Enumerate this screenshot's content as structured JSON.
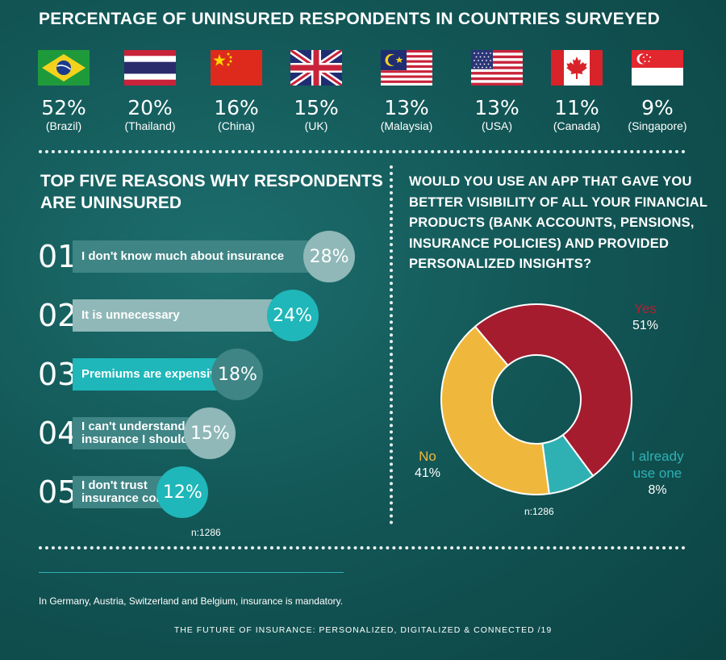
{
  "header": {
    "title": "PERCENTAGE OF UNINSURED RESPONDENTS IN COUNTRIES SURVEYED"
  },
  "countries": [
    {
      "pct": "52%",
      "name": "(Brazil)",
      "flag": "brazil-flag-icon"
    },
    {
      "pct": "20%",
      "name": "(Thailand)",
      "flag": "thailand-flag-icon"
    },
    {
      "pct": "16%",
      "name": "(China)",
      "flag": "china-flag-icon"
    },
    {
      "pct": "15%",
      "name": "(UK)",
      "flag": "uk-flag-icon"
    },
    {
      "pct": "13%",
      "name": "(Malaysia)",
      "flag": "malaysia-flag-icon"
    },
    {
      "pct": "13%",
      "name": "(USA)",
      "flag": "usa-flag-icon"
    },
    {
      "pct": "11%",
      "name": "(Canada)",
      "flag": "canada-flag-icon"
    },
    {
      "pct": "9%",
      "name": "(Singapore)",
      "flag": "singapore-flag-icon"
    }
  ],
  "reasons": {
    "title_line1": "TOP FIVE REASONS WHY RESPONDENTS",
    "title_line2": "ARE UNINSURED",
    "n": "n:1286"
  },
  "app_question": {
    "lines": [
      "WOULD YOU USE AN APP THAT GAVE YOU",
      "BETTER VISIBILITY OF ALL YOUR FINANCIAL",
      "PRODUCTS (BANK ACCOUNTS, PENSIONS,",
      "INSURANCE POLICIES) AND PROVIDED",
      "PERSONALIZED INSIGHTS?"
    ],
    "n": "n:1286"
  },
  "footnote": "In Germany, Austria, Switzerland and Belgium, insurance is mandatory.",
  "footer": "THE FUTURE OF INSURANCE: PERSONALIZED, DIGITALIZED & CONNECTED /19",
  "colors": {
    "bar_1": "#3f8585",
    "bar_2": "#90b8b8",
    "bar_3": "#1fb7b9",
    "circle_1": "#90b8b8",
    "circle_2": "#1fb7b9",
    "circle_3": "#3f8585",
    "yes": "#a51c2f",
    "no": "#efb83d",
    "already": "#2fb1b4"
  },
  "chart_data": [
    {
      "type": "bar",
      "title": "TOP FIVE REASONS WHY RESPONDENTS ARE UNINSURED",
      "categories": [
        "I don't know much about insurance",
        "It is unnecessary",
        "Premiums are expensive",
        "I can't understand which insurance I should buy",
        "I don't trust insurance companies"
      ],
      "ranks": [
        "01",
        "02",
        "03",
        "04",
        "05"
      ],
      "label_lines": [
        [
          "I don't know much about insurance"
        ],
        [
          "It is unnecessary"
        ],
        [
          "Premiums are expensive"
        ],
        [
          "I can't understand which",
          "insurance I should buy"
        ],
        [
          "I don't trust",
          "insurance companies"
        ]
      ],
      "value_labels": [
        "28%",
        "24%",
        "18%",
        "15%",
        "12%"
      ],
      "values": [
        28,
        24,
        18,
        15,
        12
      ],
      "unit": "%"
    },
    {
      "type": "pie",
      "title": "WOULD YOU USE AN APP THAT GAVE YOU BETTER VISIBILITY OF ALL YOUR FINANCIAL PRODUCTS (BANK ACCOUNTS, PENSIONS, INSURANCE POLICIES) AND PROVIDED PERSONALIZED INSIGHTS?",
      "categories": [
        "Yes",
        "I already use one",
        "No"
      ],
      "values": [
        51,
        8,
        41
      ],
      "value_labels": [
        "51%",
        "8%",
        "41%"
      ],
      "donut": true
    }
  ]
}
